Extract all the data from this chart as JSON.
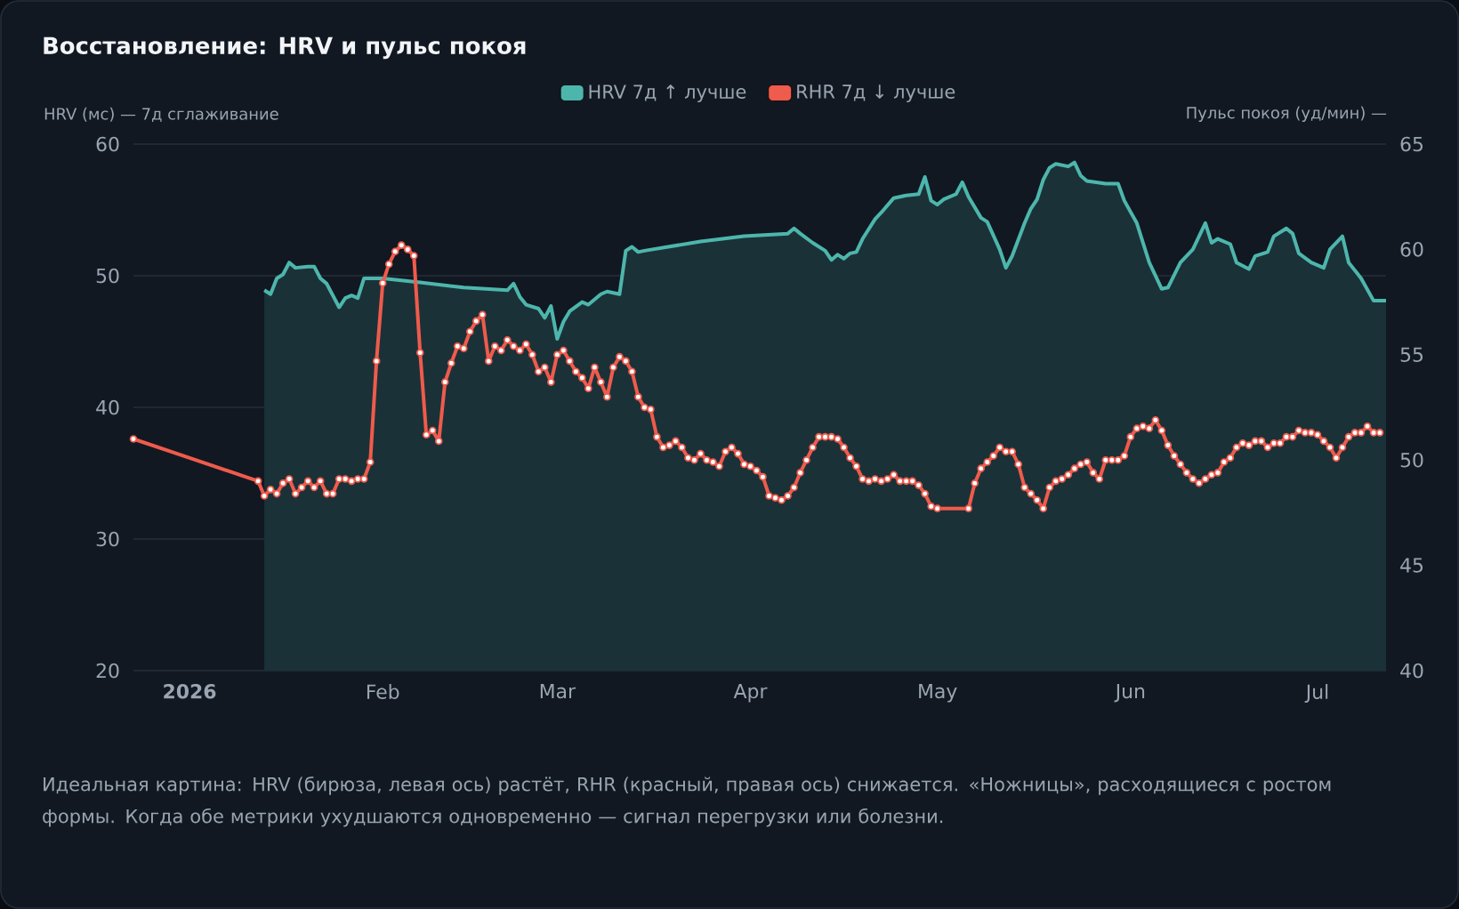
{
  "chart_data": {
    "type": "line",
    "title": "Восстановление: HRV и пульс покоя",
    "ylabel": "HRV (мс) — 7д сглаживание",
    "y2label": "Пульс покоя (уд/мин) —",
    "annotations": [
      "Идеальная картина: HRV (бирюза, левая ось) растёт, RHR (красный, правая ось) снижается. «Ножницы», расходящиеся с ростом формы. Когда обе метрики ухудшаются одновременно — сигнал перегрузки или болезни."
    ],
    "xlim": [
      "2025-12-23",
      "2026-07-12"
    ],
    "xticks": [
      {
        "value": "2026-01-01",
        "label": "**2026**"
      },
      {
        "value": "2026-02-01",
        "label": "Feb"
      },
      {
        "value": "2026-03-01",
        "label": "Mar"
      },
      {
        "value": "2026-04-01",
        "label": "Apr"
      },
      {
        "value": "2026-05-01",
        "label": "May"
      },
      {
        "value": "2026-06-01",
        "label": "Jun"
      },
      {
        "value": "2026-07-01",
        "label": "Jul"
      }
    ],
    "ylim": [
      20,
      60
    ],
    "yticks": [
      20,
      30,
      40,
      50,
      60
    ],
    "y2lim": [
      40,
      65
    ],
    "y2ticks": [
      40,
      45,
      50,
      55,
      60,
      65
    ],
    "grid": "y",
    "legend": "top",
    "series": [
      {
        "name": "HRV 7д ↑ лучше",
        "type": "area",
        "color": "#4db6ac",
        "x": [
          "2026-01-13",
          "2026-01-14",
          "2026-01-15",
          "2026-01-16",
          "2026-01-17",
          "2026-01-18",
          "2026-01-20",
          "2026-01-21",
          "2026-01-22",
          "2026-01-23",
          "2026-01-25",
          "2026-01-26",
          "2026-01-27",
          "2026-01-28",
          "2026-01-29",
          "2026-02-01",
          "2026-02-07",
          "2026-02-14",
          "2026-02-21",
          "2026-02-22",
          "2026-02-23",
          "2026-02-24",
          "2026-02-26",
          "2026-02-27",
          "2026-02-28",
          "2026-03-01",
          "2026-03-02",
          "2026-03-03",
          "2026-03-05",
          "2026-03-06",
          "2026-03-08",
          "2026-03-09",
          "2026-03-11",
          "2026-03-12",
          "2026-03-13",
          "2026-03-14",
          "2026-03-15",
          "2026-03-24",
          "2026-03-31",
          "2026-04-07",
          "2026-04-08",
          "2026-04-09",
          "2026-04-11",
          "2026-04-13",
          "2026-04-14",
          "2026-04-15",
          "2026-04-16",
          "2026-04-17",
          "2026-04-18",
          "2026-04-19",
          "2026-04-21",
          "2026-04-22",
          "2026-04-24",
          "2026-04-26",
          "2026-04-28",
          "2026-04-29",
          "2026-04-30",
          "2026-05-01",
          "2026-05-02",
          "2026-05-04",
          "2026-05-05",
          "2026-05-06",
          "2026-05-08",
          "2026-05-09",
          "2026-05-11",
          "2026-05-12",
          "2026-05-13",
          "2026-05-15",
          "2026-05-16",
          "2026-05-17",
          "2026-05-18",
          "2026-05-19",
          "2026-05-20",
          "2026-05-22",
          "2026-05-23",
          "2026-05-24",
          "2026-05-25",
          "2026-05-28",
          "2026-05-30",
          "2026-05-31",
          "2026-06-02",
          "2026-06-04",
          "2026-06-06",
          "2026-06-07",
          "2026-06-09",
          "2026-06-11",
          "2026-06-13",
          "2026-06-14",
          "2026-06-15",
          "2026-06-17",
          "2026-06-18",
          "2026-06-20",
          "2026-06-21",
          "2026-06-23",
          "2026-06-24",
          "2026-06-26",
          "2026-06-27",
          "2026-06-28",
          "2026-06-30",
          "2026-07-02",
          "2026-07-03",
          "2026-07-05",
          "2026-07-06",
          "2026-07-08",
          "2026-07-10",
          "2026-07-12"
        ],
        "values": [
          48.9,
          48.6,
          49.8,
          50.1,
          51.0,
          50.6,
          50.7,
          50.7,
          49.8,
          49.4,
          47.6,
          48.3,
          48.5,
          48.3,
          49.8,
          49.8,
          49.5,
          49.1,
          48.9,
          49.4,
          48.4,
          47.8,
          47.5,
          46.8,
          47.7,
          45.2,
          46.5,
          47.3,
          48.0,
          47.8,
          48.6,
          48.8,
          48.6,
          51.9,
          52.2,
          51.8,
          51.9,
          52.6,
          53.0,
          53.2,
          53.6,
          53.2,
          52.5,
          51.9,
          51.2,
          51.6,
          51.3,
          51.7,
          51.8,
          52.8,
          54.3,
          54.8,
          55.9,
          56.1,
          56.2,
          57.5,
          55.7,
          55.4,
          55.8,
          56.2,
          57.1,
          56.0,
          54.4,
          54.1,
          52.0,
          50.6,
          51.5,
          54.0,
          55.1,
          55.8,
          57.3,
          58.2,
          58.5,
          58.3,
          58.6,
          57.6,
          57.2,
          57.0,
          57.0,
          55.7,
          54.0,
          51.0,
          49.0,
          49.1,
          51.0,
          52.0,
          54.0,
          52.5,
          52.8,
          52.4,
          51.0,
          50.5,
          51.5,
          51.8,
          53.0,
          53.6,
          53.2,
          51.7,
          51.0,
          50.6,
          52.0,
          53.0,
          51.0,
          49.8,
          48.1,
          48.1
        ]
      },
      {
        "name": "RHR 7д ↓ лучше",
        "axis": "y2",
        "color": "#ef5b4c",
        "marker": "circle",
        "x": [
          "2025-12-23",
          "2026-01-12",
          "2026-01-13",
          "2026-01-14",
          "2026-01-15",
          "2026-01-16",
          "2026-01-17",
          "2026-01-18",
          "2026-01-19",
          "2026-01-20",
          "2026-01-21",
          "2026-01-22",
          "2026-01-23",
          "2026-01-24",
          "2026-01-25",
          "2026-01-26",
          "2026-01-27",
          "2026-01-28",
          "2026-01-29",
          "2026-01-30",
          "2026-01-31",
          "2026-02-01",
          "2026-02-02",
          "2026-02-03",
          "2026-02-04",
          "2026-02-05",
          "2026-02-06",
          "2026-02-07",
          "2026-02-08",
          "2026-02-09",
          "2026-02-10",
          "2026-02-11",
          "2026-02-12",
          "2026-02-13",
          "2026-02-14",
          "2026-02-15",
          "2026-02-16",
          "2026-02-17",
          "2026-02-18",
          "2026-02-19",
          "2026-02-20",
          "2026-02-21",
          "2026-02-22",
          "2026-02-23",
          "2026-02-24",
          "2026-02-25",
          "2026-02-26",
          "2026-02-27",
          "2026-02-28",
          "2026-03-01",
          "2026-03-02",
          "2026-03-03",
          "2026-03-04",
          "2026-03-05",
          "2026-03-06",
          "2026-03-07",
          "2026-03-08",
          "2026-03-09",
          "2026-03-10",
          "2026-03-11",
          "2026-03-12",
          "2026-03-13",
          "2026-03-14",
          "2026-03-15",
          "2026-03-16",
          "2026-03-17",
          "2026-03-18",
          "2026-03-19",
          "2026-03-20",
          "2026-03-21",
          "2026-03-22",
          "2026-03-23",
          "2026-03-24",
          "2026-03-25",
          "2026-03-26",
          "2026-03-27",
          "2026-03-28",
          "2026-03-29",
          "2026-03-30",
          "2026-03-31",
          "2026-04-01",
          "2026-04-02",
          "2026-04-03",
          "2026-04-04",
          "2026-04-05",
          "2026-04-06",
          "2026-04-07",
          "2026-04-08",
          "2026-04-09",
          "2026-04-10",
          "2026-04-11",
          "2026-04-12",
          "2026-04-13",
          "2026-04-14",
          "2026-04-15",
          "2026-04-16",
          "2026-04-17",
          "2026-04-18",
          "2026-04-19",
          "2026-04-20",
          "2026-04-21",
          "2026-04-22",
          "2026-04-23",
          "2026-04-24",
          "2026-04-25",
          "2026-04-26",
          "2026-04-27",
          "2026-04-28",
          "2026-04-29",
          "2026-04-30",
          "2026-05-01",
          "2026-05-06",
          "2026-05-07",
          "2026-05-08",
          "2026-05-09",
          "2026-05-10",
          "2026-05-11",
          "2026-05-12",
          "2026-05-13",
          "2026-05-14",
          "2026-05-15",
          "2026-05-16",
          "2026-05-17",
          "2026-05-18",
          "2026-05-19",
          "2026-05-20",
          "2026-05-21",
          "2026-05-22",
          "2026-05-23",
          "2026-05-24",
          "2026-05-25",
          "2026-05-26",
          "2026-05-27",
          "2026-05-28",
          "2026-05-29",
          "2026-05-30",
          "2026-05-31",
          "2026-06-01",
          "2026-06-02",
          "2026-06-03",
          "2026-06-04",
          "2026-06-05",
          "2026-06-06",
          "2026-06-07",
          "2026-06-08",
          "2026-06-09",
          "2026-06-10",
          "2026-06-11",
          "2026-06-12",
          "2026-06-13",
          "2026-06-14",
          "2026-06-15",
          "2026-06-16",
          "2026-06-17",
          "2026-06-18",
          "2026-06-19",
          "2026-06-20",
          "2026-06-21",
          "2026-06-22",
          "2026-06-23",
          "2026-06-24",
          "2026-06-25",
          "2026-06-26",
          "2026-06-27",
          "2026-06-28",
          "2026-06-29",
          "2026-06-30",
          "2026-07-01",
          "2026-07-02",
          "2026-07-03",
          "2026-07-04",
          "2026-07-05",
          "2026-07-06",
          "2026-07-07",
          "2026-07-08",
          "2026-07-09",
          "2026-07-10",
          "2026-07-11"
        ],
        "values": [
          51.0,
          49.0,
          48.3,
          48.6,
          48.4,
          48.9,
          49.1,
          48.4,
          48.7,
          49.0,
          48.7,
          49.0,
          48.4,
          48.4,
          49.1,
          49.1,
          49.0,
          49.1,
          49.1,
          49.9,
          54.7,
          58.4,
          59.3,
          59.9,
          60.2,
          60.0,
          59.7,
          55.1,
          51.2,
          51.4,
          50.9,
          53.7,
          54.6,
          55.4,
          55.3,
          56.1,
          56.6,
          56.9,
          54.7,
          55.4,
          55.2,
          55.7,
          55.4,
          55.2,
          55.5,
          55.0,
          54.2,
          54.4,
          53.7,
          55.0,
          55.2,
          54.7,
          54.2,
          53.9,
          53.4,
          54.4,
          53.7,
          53.0,
          54.4,
          54.9,
          54.7,
          54.2,
          53.0,
          52.5,
          52.4,
          51.1,
          50.6,
          50.7,
          50.9,
          50.6,
          50.1,
          50.0,
          50.3,
          50.0,
          49.9,
          49.7,
          50.4,
          50.6,
          50.3,
          49.8,
          49.7,
          49.5,
          49.2,
          48.3,
          48.2,
          48.1,
          48.3,
          48.7,
          49.4,
          50.0,
          50.6,
          51.1,
          51.1,
          51.1,
          51.0,
          50.6,
          50.1,
          49.7,
          49.1,
          49.0,
          49.1,
          49.0,
          49.1,
          49.3,
          49.0,
          49.0,
          49.0,
          48.8,
          48.4,
          47.8,
          47.7,
          47.7,
          48.9,
          49.6,
          49.9,
          50.2,
          50.6,
          50.4,
          50.4,
          49.8,
          48.7,
          48.4,
          48.1,
          47.7,
          48.7,
          49.0,
          49.1,
          49.3,
          49.6,
          49.8,
          49.9,
          49.4,
          49.1,
          50.0,
          50.0,
          50.0,
          50.2,
          51.1,
          51.5,
          51.6,
          51.5,
          51.9,
          51.4,
          50.7,
          50.2,
          49.8,
          49.4,
          49.1,
          48.9,
          49.1,
          49.3,
          49.4,
          49.9,
          50.1,
          50.6,
          50.8,
          50.7,
          50.9,
          50.9,
          50.6,
          50.8,
          50.8,
          51.1,
          51.1,
          51.4,
          51.3,
          51.3,
          51.2,
          50.9,
          50.6,
          50.1,
          50.6,
          51.1,
          51.3,
          51.3,
          51.6,
          51.3,
          51.3
        ]
      }
    ]
  }
}
